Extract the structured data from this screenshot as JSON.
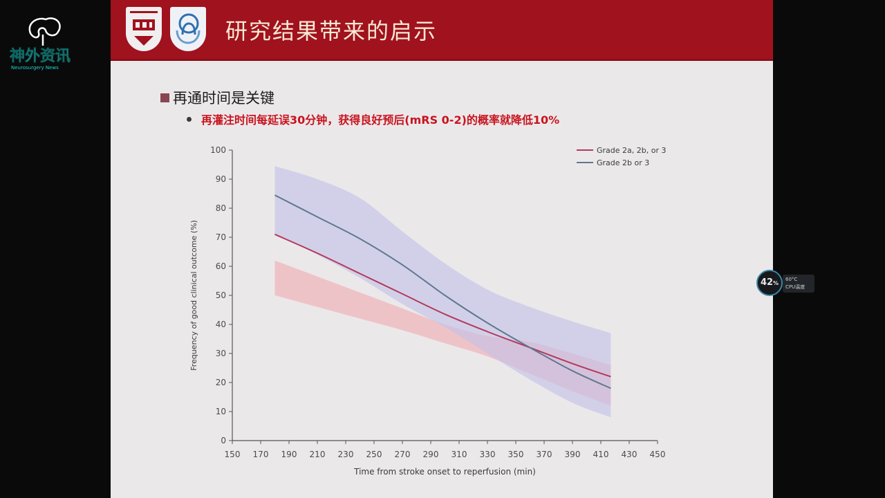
{
  "slide": {
    "title": "研究结果带来的启示",
    "bullet_main": "再通时间是关键",
    "bullet_sub": "再灌注时间每延误30分钟，获得良好预后(mRS 0-2)的概率就降低10%"
  },
  "watermark": {
    "text": "神外资讯",
    "subtext": "Neurosurgery News"
  },
  "cpu_widget": {
    "percent": "42",
    "percent_unit": "%",
    "temp": "60°C",
    "label": "CPU温度"
  },
  "colors": {
    "header": "#a0121d",
    "title_text": "#f7e9d6",
    "bullet_red": "#c8141e",
    "series_red": "#b5385a",
    "series_blue": "#5f7890"
  },
  "chart_data": {
    "type": "line",
    "xlabel": "Time from stroke onset to reperfusion (min)",
    "ylabel": "Frequency of good clinical outcome (%)",
    "xlim": [
      150,
      450
    ],
    "ylim": [
      0,
      100
    ],
    "xticks": [
      150,
      170,
      190,
      210,
      230,
      250,
      270,
      290,
      310,
      330,
      350,
      370,
      390,
      410,
      430,
      450
    ],
    "yticks": [
      0,
      10,
      20,
      30,
      40,
      50,
      60,
      70,
      80,
      90,
      100
    ],
    "legend_position": "top-right",
    "series": [
      {
        "name": "Grade 2a, 2b, or 3",
        "color": "#b5385a",
        "band_color": "#f0b3b8",
        "x": [
          180,
          210,
          240,
          270,
          300,
          330,
          360,
          390,
          417
        ],
        "y": [
          71,
          64.5,
          57.5,
          50.5,
          43.5,
          37.5,
          32,
          26.5,
          22
        ],
        "lower": [
          50,
          46,
          42,
          38,
          33.5,
          29,
          23,
          17,
          12
        ],
        "upper": [
          62,
          56.5,
          51,
          45.5,
          40,
          36,
          34,
          30,
          26
        ]
      },
      {
        "name": "Grade 2b or 3",
        "color": "#5f7890",
        "band_color": "#c3c2e8",
        "x": [
          180,
          210,
          240,
          270,
          300,
          330,
          360,
          390,
          417
        ],
        "y": [
          84.5,
          77,
          69.5,
          60.5,
          50,
          40.5,
          32,
          24,
          18
        ],
        "lower": [
          71,
          64,
          56,
          47,
          39,
          30,
          21,
          13,
          8
        ],
        "upper": [
          94.5,
          90,
          83.5,
          72,
          61,
          52,
          46,
          41,
          37
        ]
      }
    ]
  }
}
